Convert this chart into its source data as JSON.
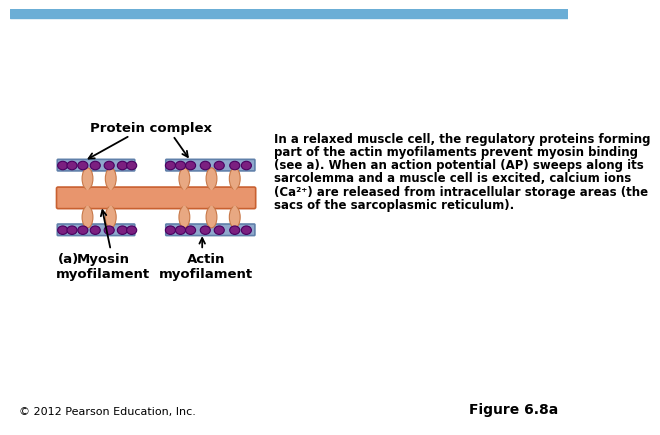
{
  "bg_color": "#ffffff",
  "header_color": "#6baed6",
  "diagram": {
    "myosin_head_color": "#e8a882",
    "myosin_head_edge": "#c87848",
    "thick_color_center": "#e8956d",
    "thick_color_edge": "#e07040",
    "thin_color": "#8fa8cc",
    "thin_edge": "#6080aa",
    "protein_color": "#7b2080",
    "protein_edge": "#4a0060"
  },
  "text": {
    "protein_complex": "Protein complex",
    "myosin_label": "Myosin\nmyofilament",
    "actin_label": "Actin\nmyofilament",
    "a_label": "(a)",
    "description_line1": "In a relaxed muscle cell, the regulatory proteins forming",
    "description_line2": "part of the actin myofilaments prevent myosin binding",
    "description_line3": "(see a). When an action potential (AP) sweeps along its",
    "description_line4": "sarcolemma and a muscle cell is excited, calcium ions",
    "description_line5": "(Ca²⁺) are released from intracellular storage areas (the",
    "description_line6": "sacs of the sarcoplasmic reticulum).",
    "copyright": "© 2012 Pearson Education, Inc.",
    "figure": "Figure 6.8a"
  }
}
